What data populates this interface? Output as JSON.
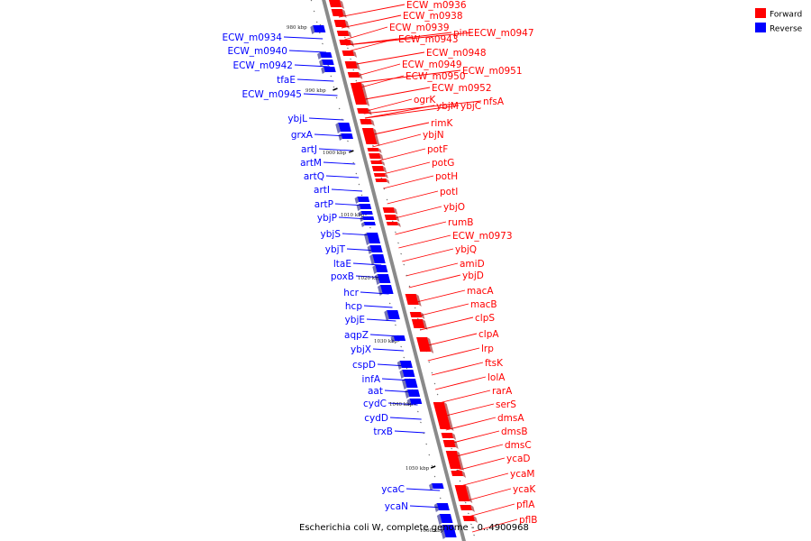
{
  "caption": "Escherichia coli W, complete genome - 0..4900968",
  "legend": [
    {
      "label": "Forward",
      "color": "#ff0000"
    },
    {
      "label": "Reverse",
      "color": "#0000ff"
    }
  ],
  "colors": {
    "forward": "#ff0000",
    "reverse": "#0000ff",
    "backbone": "#888888"
  },
  "ticks": [
    "980 kbp",
    "990 kbp",
    "1000 kbp",
    "1010 kbp",
    "1020 kbp",
    "1030 kbp",
    "1040 kbp",
    "1050 kbp",
    "1060 kbp"
  ],
  "forward_labels": [
    "ECW_m0936",
    "ECW_m0938",
    "ECW_m0939",
    "pinE",
    "ECW_m0947",
    "ECW_m0943",
    "ECW_m0948",
    "ECW_m0951",
    "ECW_m0949",
    "ECW_m0950",
    "ECW_m0952",
    "ogrK",
    "ybjM",
    "ybjC",
    "nfsA",
    "rimK",
    "ybjN",
    "potF",
    "potG",
    "potH",
    "potI",
    "ybjO",
    "rumB",
    "ECW_m0973",
    "ybjQ",
    "amiD",
    "ybjD",
    "macA",
    "macB",
    "clpS",
    "clpA",
    "lrp",
    "ftsK",
    "lolA",
    "rarA",
    "serS",
    "dmsA",
    "dmsB",
    "dmsC",
    "ycaD",
    "ycaM",
    "ycaK",
    "pflA",
    "pflB"
  ],
  "reverse_labels": [
    "ECW_m0934",
    "ECW_m0940",
    "ECW_m0942",
    "tfaE",
    "ECW_m0945",
    "ybjL",
    "grxA",
    "artJ",
    "artM",
    "artQ",
    "artI",
    "artP",
    "ybjP",
    "ybjS",
    "ybjT",
    "ltaE",
    "poxB",
    "hcr",
    "hcp",
    "ybjE",
    "aqpZ",
    "ybjX",
    "cspD",
    "infA",
    "aat",
    "cydC",
    "cydD",
    "trxB",
    "ycaC",
    "ycaN"
  ]
}
